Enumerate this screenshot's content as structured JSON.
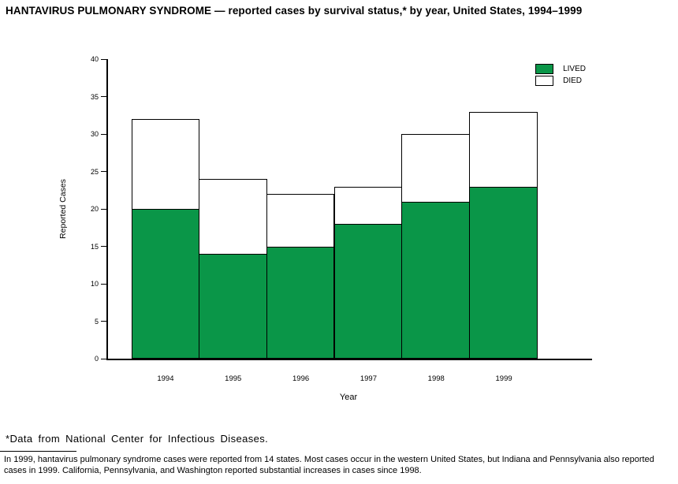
{
  "page": {
    "title": "HANTAVIRUS PULMONARY SYNDROME — reported cases by survival status,* by year, United States, 1994–1999",
    "footnote": "*Data from National Center for Infectious Diseases.",
    "note": "In 1999, hantavirus pulmonary syndrome cases were reported from 14 states. Most cases occur in the western United States, but Indiana and Pennsylvania also reported cases in 1999. California, Pennsylvania, and Washington reported substantial increases in cases since 1998."
  },
  "chart_data": {
    "type": "bar",
    "stacked": true,
    "title": "HANTAVIRUS PULMONARY SYNDROME — reported cases by survival status,* by year, United States, 1994–1999",
    "categories": [
      "1994",
      "1995",
      "1996",
      "1997",
      "1998",
      "1999"
    ],
    "series": [
      {
        "name": "LIVED",
        "color": "#0a9648",
        "values": [
          20,
          14,
          15,
          18,
          21,
          23
        ]
      },
      {
        "name": "DIED",
        "color": "#ffffff",
        "values": [
          12,
          10,
          7,
          5,
          9,
          10
        ]
      }
    ],
    "totals": [
      32,
      24,
      22,
      23,
      30,
      33
    ],
    "xlabel": "Year",
    "ylabel": "Reported Cases",
    "ylim": [
      0,
      40
    ],
    "ytick_step": 5,
    "yticks": [
      0,
      5,
      10,
      15,
      20,
      25,
      30,
      35,
      40
    ],
    "grid": false,
    "legend_position": "top-right"
  }
}
